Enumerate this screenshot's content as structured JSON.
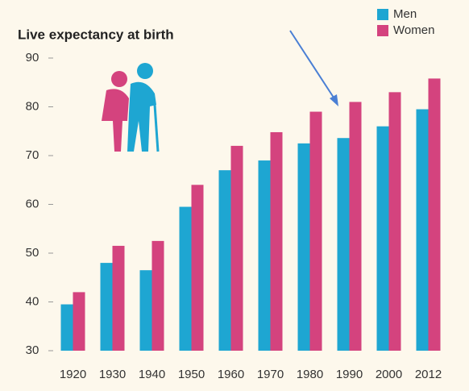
{
  "chart_data": {
    "type": "bar",
    "title": "Live expectancy at birth",
    "categories": [
      "1920",
      "1930",
      "1940",
      "1950",
      "1960",
      "1970",
      "1980",
      "1990",
      "2000",
      "2012"
    ],
    "series": [
      {
        "name": "Men",
        "color": "#1ea6d2",
        "values": [
          39.5,
          48,
          46.5,
          59.5,
          67,
          69,
          72.5,
          73.6,
          76,
          79.5
        ]
      },
      {
        "name": "Women",
        "color": "#d4437e",
        "values": [
          42,
          51.5,
          52.5,
          64,
          72,
          74.8,
          79,
          81,
          83,
          85.8
        ]
      }
    ],
    "ylim": [
      30,
      90
    ],
    "yticks": [
      30,
      40,
      50,
      60,
      70,
      80,
      90
    ],
    "legend": "top-right"
  }
}
